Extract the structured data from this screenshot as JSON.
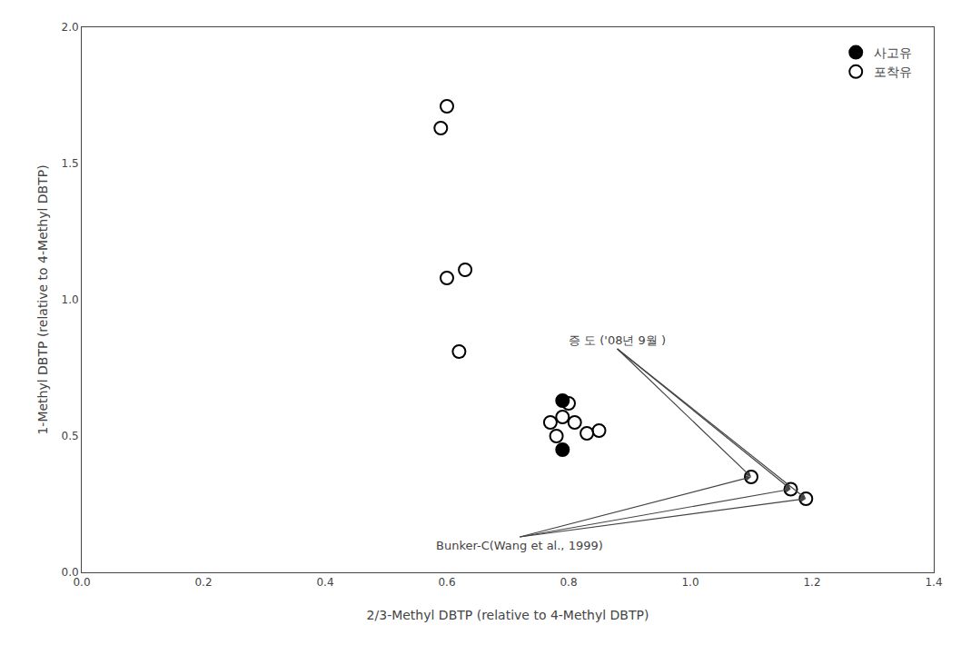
{
  "chart_data": {
    "type": "scatter",
    "xlabel": "2/3-Methyl DBTP (relative to 4-Methyl DBTP)",
    "ylabel": "1-Methyl DBTP (relative to 4-Methyl DBTP)",
    "xlim": [
      0.0,
      1.4
    ],
    "ylim": [
      0.0,
      2.0
    ],
    "xticks": [
      {
        "value": 0.0,
        "label": "0.0"
      },
      0.2,
      0.4,
      0.6,
      0.8,
      {
        "value": 1.0,
        "label": "1.0"
      },
      1.2,
      1.4
    ],
    "yticks": [
      {
        "value": 0.0,
        "label": "0.0"
      },
      0.5,
      {
        "value": 1.0,
        "label": "1.0"
      },
      1.5,
      {
        "value": 2.0,
        "label": "2.0"
      }
    ],
    "grid": false,
    "legend": "upper right",
    "series": [
      {
        "name": "포착유",
        "color": "#000000",
        "marker": "open",
        "x": [
          0.59,
          0.6,
          0.6,
          0.63,
          0.62,
          0.77,
          0.79,
          0.81,
          0.83,
          0.85,
          0.78,
          0.8,
          1.1,
          1.165,
          1.19
        ],
        "values": [
          1.63,
          1.71,
          1.08,
          1.11,
          0.81,
          0.55,
          0.57,
          0.55,
          0.51,
          0.52,
          0.5,
          0.62,
          0.35,
          0.305,
          0.27
        ]
      },
      {
        "name": "사고유",
        "color": "#000000",
        "marker": "filled",
        "x": [
          0.79,
          0.79
        ],
        "values": [
          0.63,
          0.45
        ]
      }
    ],
    "annotations": [
      {
        "text": "증 도 ('08년 9월 )",
        "x": 0.88,
        "y": 0.82,
        "arrows": [
          [
            1.1,
            0.35
          ],
          [
            1.165,
            0.305
          ],
          [
            1.19,
            0.27
          ]
        ]
      },
      {
        "text": "Bunker-C(Wang et al., 1999)",
        "x": 0.72,
        "y": 0.13,
        "arrows": [
          [
            1.1,
            0.35
          ],
          [
            1.165,
            0.305
          ],
          [
            1.19,
            0.27
          ]
        ]
      }
    ]
  }
}
